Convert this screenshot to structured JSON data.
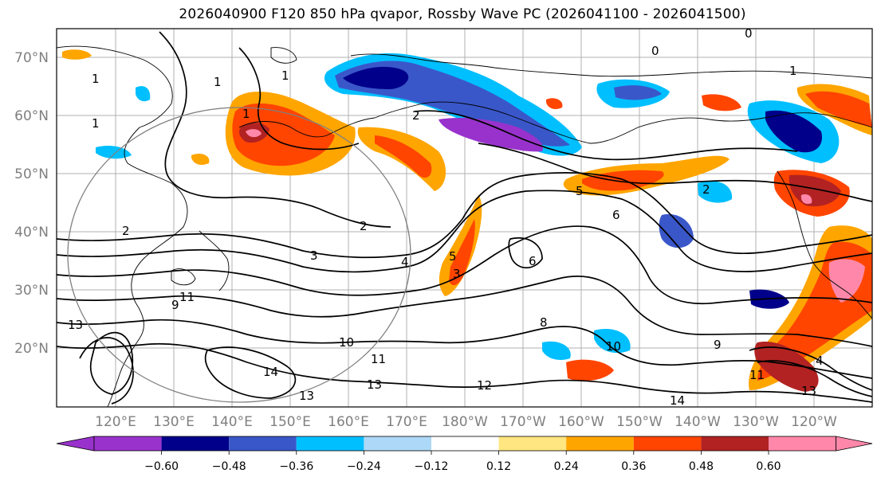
{
  "title": "2026040900 F120 850 hPa qvapor, Rossby Wave PC (2026041100 - 2026041500)",
  "lat_labels": [
    "70°N",
    "60°N",
    "50°N",
    "40°N",
    "30°N",
    "20°N"
  ],
  "lon_labels": [
    "120°E",
    "130°E",
    "140°E",
    "150°E",
    "160°E",
    "170°E",
    "180°W",
    "170°W",
    "160°W",
    "150°W",
    "140°W",
    "130°W",
    "120°W"
  ],
  "colorbar": {
    "colors": [
      "#9932cc",
      "#00008b",
      "#3a57c9",
      "#00bfff",
      "#add8f7",
      "#ffffff",
      "#ffe680",
      "#ffa500",
      "#ff4500",
      "#b22222",
      "#ff88aa"
    ],
    "tick_labels": [
      "−0.60",
      "−0.48",
      "−0.36",
      "−0.24",
      "−0.12",
      "0.12",
      "0.24",
      "0.36",
      "0.48",
      "0.60"
    ]
  },
  "contour_labels": [
    "0",
    "0",
    "1",
    "1",
    "1",
    "1",
    "1",
    "1",
    "2",
    "2",
    "2",
    "2",
    "3",
    "3",
    "4",
    "4",
    "5",
    "5",
    "6",
    "6",
    "8",
    "9",
    "10",
    "11",
    "11",
    "11",
    "12",
    "13",
    "13",
    "13",
    "13",
    "14",
    "14",
    "9",
    "10"
  ]
}
